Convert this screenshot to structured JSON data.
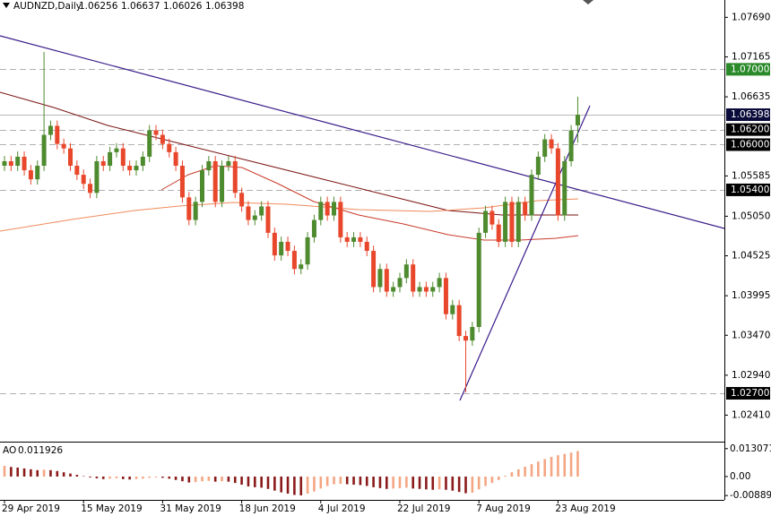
{
  "header": {
    "symbol": "AUDNZD,Daily"
  },
  "chart_data": [
    {
      "type": "candlestick",
      "up_color": "#4e8a2e",
      "down_color": "#e8472b",
      "categories": [
        "29 Apr 2019",
        null,
        null,
        null,
        null,
        null,
        null,
        null,
        null,
        null,
        null,
        null,
        "15 May 2019",
        null,
        null,
        null,
        null,
        null,
        null,
        null,
        null,
        null,
        null,
        null,
        "31 May 2019",
        null,
        null,
        null,
        null,
        null,
        null,
        null,
        null,
        null,
        null,
        null,
        "18 Jun 2019",
        null,
        null,
        null,
        null,
        null,
        null,
        null,
        null,
        null,
        null,
        null,
        "4 Jul 2019",
        null,
        null,
        null,
        null,
        null,
        null,
        null,
        null,
        null,
        null,
        null,
        "22 Jul 2019",
        null,
        null,
        null,
        null,
        null,
        null,
        null,
        null,
        null,
        null,
        null,
        "7 Aug 2019",
        null,
        null,
        null,
        null,
        null,
        null,
        null,
        null,
        null,
        null,
        null,
        "23 Aug 2019",
        null,
        null,
        null
      ],
      "open": [
        1.0572,
        1.0578,
        1.0572,
        1.0584,
        1.0566,
        1.0554,
        1.0572,
        1.0613,
        1.0625,
        1.0601,
        1.0595,
        1.0572,
        1.056,
        1.0548,
        1.0536,
        1.0578,
        1.0572,
        1.059,
        1.0595,
        1.0572,
        1.0566,
        1.0572,
        1.0584,
        1.0619,
        1.0613,
        1.0601,
        1.059,
        1.0572,
        1.053,
        1.05,
        1.0524,
        1.0566,
        1.0578,
        1.0524,
        1.0572,
        1.0578,
        1.0536,
        1.0518,
        1.05,
        1.0506,
        1.0518,
        1.0483,
        1.0453,
        1.0471,
        1.0459,
        1.0435,
        1.0441,
        1.0477,
        1.05,
        1.0524,
        1.0506,
        1.0524,
        1.0477,
        1.0471,
        1.0477,
        1.0471,
        1.0459,
        1.0411,
        1.0435,
        1.0405,
        1.0411,
        1.0423,
        1.0441,
        1.0405,
        1.0411,
        1.0405,
        1.0411,
        1.0423,
        1.0375,
        1.0387,
        1.0346,
        1.034,
        1.0358,
        1.0483,
        1.0512,
        1.0494,
        1.0471,
        1.0524,
        1.0471,
        1.0524,
        1.0506,
        1.056,
        1.0584,
        1.0607,
        1.0595,
        1.0506,
        1.0578,
        1.06256
      ],
      "high": [
        1.0585,
        1.0585,
        1.0591,
        1.0591,
        1.0573,
        1.0579,
        1.0723,
        1.0632,
        1.0632,
        1.0608,
        1.0602,
        1.0579,
        1.0567,
        1.0555,
        1.0585,
        1.0585,
        1.0597,
        1.0602,
        1.0602,
        1.0579,
        1.0579,
        1.0591,
        1.0626,
        1.0626,
        1.062,
        1.0608,
        1.0597,
        1.0579,
        1.0537,
        1.0531,
        1.0573,
        1.0585,
        1.0585,
        1.0579,
        1.0585,
        1.0585,
        1.0543,
        1.0525,
        1.0513,
        1.0525,
        1.0525,
        1.049,
        1.0478,
        1.0478,
        1.0466,
        1.0448,
        1.0484,
        1.0507,
        1.0531,
        1.0531,
        1.0531,
        1.0531,
        1.0484,
        1.0484,
        1.0484,
        1.0478,
        1.0466,
        1.0442,
        1.0442,
        1.0418,
        1.043,
        1.0448,
        1.0448,
        1.0418,
        1.0418,
        1.0418,
        1.043,
        1.043,
        1.0394,
        1.0394,
        1.0353,
        1.0365,
        1.049,
        1.0519,
        1.0519,
        1.0501,
        1.0531,
        1.0531,
        1.0531,
        1.0531,
        1.0567,
        1.0591,
        1.0614,
        1.0614,
        1.0602,
        1.0585,
        1.0626,
        1.06637
      ],
      "low": [
        1.0565,
        1.0565,
        1.0565,
        1.0559,
        1.0547,
        1.0547,
        1.0565,
        1.0606,
        1.0594,
        1.0588,
        1.0565,
        1.0553,
        1.0541,
        1.0529,
        1.0529,
        1.0565,
        1.0565,
        1.0583,
        1.0565,
        1.0559,
        1.0559,
        1.0565,
        1.0577,
        1.0606,
        1.0594,
        1.0583,
        1.0565,
        1.0523,
        1.0493,
        1.0493,
        1.0517,
        1.0559,
        1.0517,
        1.0517,
        1.0565,
        1.0529,
        1.0511,
        1.0493,
        1.0493,
        1.0499,
        1.0476,
        1.0446,
        1.0446,
        1.0452,
        1.0428,
        1.0428,
        1.0434,
        1.047,
        1.0493,
        1.0499,
        1.0499,
        1.047,
        1.0464,
        1.0464,
        1.0464,
        1.0452,
        1.0404,
        1.0404,
        1.0398,
        1.0398,
        1.0404,
        1.0416,
        1.0398,
        1.0398,
        1.0398,
        1.0398,
        1.0404,
        1.0368,
        1.0368,
        1.0339,
        1.0271,
        1.0333,
        1.0351,
        1.0476,
        1.0487,
        1.0464,
        1.0464,
        1.0464,
        1.0464,
        1.0499,
        1.0499,
        1.0553,
        1.0577,
        1.0588,
        1.0499,
        1.0499,
        1.0571,
        1.06026
      ],
      "close": [
        1.0578,
        1.0572,
        1.0584,
        1.0566,
        1.0554,
        1.0572,
        1.0613,
        1.0625,
        1.0601,
        1.0595,
        1.0572,
        1.056,
        1.0548,
        1.0536,
        1.0578,
        1.0572,
        1.059,
        1.0595,
        1.0572,
        1.0566,
        1.0572,
        1.0584,
        1.0619,
        1.0613,
        1.0601,
        1.059,
        1.0572,
        1.053,
        1.05,
        1.0524,
        1.0566,
        1.0578,
        1.0524,
        1.0572,
        1.0578,
        1.0536,
        1.0518,
        1.05,
        1.0506,
        1.0518,
        1.0483,
        1.0453,
        1.0471,
        1.0459,
        1.0435,
        1.0441,
        1.0477,
        1.05,
        1.0524,
        1.0506,
        1.0524,
        1.0477,
        1.0471,
        1.0477,
        1.0471,
        1.0459,
        1.0411,
        1.0435,
        1.0405,
        1.0411,
        1.0423,
        1.0441,
        1.0405,
        1.0411,
        1.0405,
        1.0411,
        1.0423,
        1.0375,
        1.0387,
        1.0346,
        1.034,
        1.0358,
        1.0483,
        1.0512,
        1.0494,
        1.0471,
        1.0524,
        1.0471,
        1.0524,
        1.0506,
        1.056,
        1.0584,
        1.0607,
        1.0595,
        1.0506,
        1.0578,
        1.0619,
        1.06398
      ],
      "ylim": [
        1.0207,
        1.0792
      ],
      "yticks": [
        {
          "value": 1.0769,
          "label": "1.07690"
        },
        1.07165,
        1.06635,
        1.05585,
        {
          "value": 1.0505,
          "label": "1.05050"
        },
        1.04525,
        1.03995,
        {
          "value": 1.0347,
          "label": "1.03470"
        },
        {
          "value": 1.0294,
          "label": "1.02940"
        },
        {
          "value": 1.0241,
          "label": "1.02410"
        }
      ],
      "levels": [
        {
          "value": 1.07,
          "label": "1.07000",
          "color": "#2a8a2a"
        },
        {
          "value": 1.062,
          "label": "1.06200",
          "color": "#000000"
        },
        {
          "value": 1.06,
          "label": "1.06000",
          "color": "#000000"
        },
        {
          "value": 1.054,
          "label": "1.05400",
          "color": "#000000"
        },
        {
          "value": 1.027,
          "label": "1.02700",
          "color": "#000000"
        }
      ],
      "price_color": "#0b0b3b"
    },
    {
      "type": "bar",
      "title": "AO",
      "up_color": "#f4a582",
      "down_color": "#8b1a1a",
      "values": [
        0.005,
        0.0045,
        0.0042,
        0.0038,
        0.0034,
        0.003,
        0.0032,
        0.003,
        0.0026,
        0.002,
        0.0014,
        0.0008,
        0.0002,
        -0.0004,
        -0.0008,
        -0.0012,
        -0.001,
        -0.0008,
        -0.0012,
        -0.0014,
        -0.0012,
        -0.001,
        -0.0006,
        -0.0004,
        -0.0006,
        -0.001,
        -0.0016,
        -0.0022,
        -0.0028,
        -0.0026,
        -0.0022,
        -0.002,
        -0.0024,
        -0.0022,
        -0.0024,
        -0.003,
        -0.0038,
        -0.0046,
        -0.005,
        -0.0052,
        -0.0058,
        -0.0066,
        -0.0074,
        -0.008,
        -0.0086,
        -0.0088,
        -0.008,
        -0.007,
        -0.0056,
        -0.0044,
        -0.0036,
        -0.0034,
        -0.0036,
        -0.0038,
        -0.004,
        -0.0044,
        -0.005,
        -0.0054,
        -0.0058,
        -0.0056,
        -0.0054,
        -0.0052,
        -0.0056,
        -0.0058,
        -0.006,
        -0.0062,
        -0.006,
        -0.0062,
        -0.0066,
        -0.0072,
        -0.0078,
        -0.0076,
        -0.006,
        -0.0044,
        -0.003,
        -0.0016,
        0.0004,
        0.002,
        0.0034,
        0.0046,
        0.0058,
        0.007,
        0.0082,
        0.0092,
        0.01,
        0.0106,
        0.0112,
        0.011926
      ],
      "ylim": [
        -0.0105,
        0.0155
      ],
      "yticks": [
        0.013071,
        {
          "value": 0,
          "label": "0.00"
        },
        -0.00889
      ]
    }
  ]
}
